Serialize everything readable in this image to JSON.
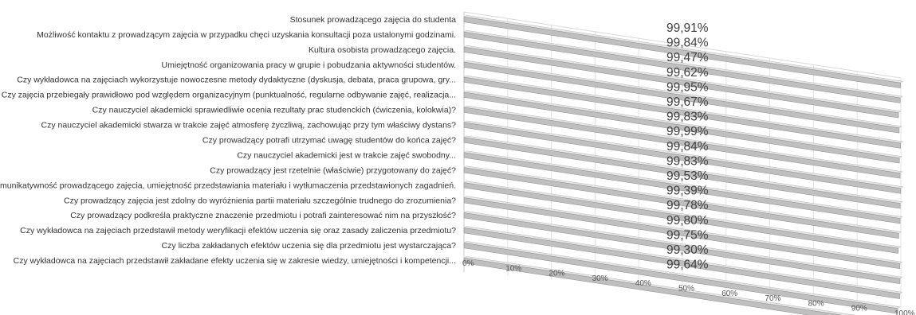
{
  "chart_data": {
    "type": "bar",
    "orientation": "horizontal",
    "style": "3d-perspective",
    "title": "",
    "xlabel": "",
    "ylabel": "",
    "xlim": [
      0,
      1
    ],
    "grid": true,
    "legend": "none",
    "bar_color": "#bfbfbf",
    "categories": [
      "Stosunek prowadzącego zajęcia do studenta",
      "Możliwość kontaktu z prowadzącym zajęcia w przypadku chęci uzyskania konsultacji poza ustalonymi godzinami.",
      "Kultura osobista prowadzącego zajęcia.",
      "Umiejętność organizowania pracy w grupie i pobudzania aktywności studentów.",
      "Czy wykładowca na zajęciach wykorzystuje nowoczesne metody dydaktyczne (dyskusja, debata, praca grupowa, gry...",
      "Czy zajęcia przebiegały prawidłowo pod względem organizacyjnym (punktualność, regularne odbywanie zajęć, realizacja...",
      "Czy nauczyciel akademicki sprawiedliwie ocenia rezultaty prac studenckich (ćwiczenia, kolokwia)?",
      "Czy nauczyciel akademicki stwarza w trakcie zajęć atmosferę życzliwą, zachowując przy tym właściwy dystans?",
      "Czy prowadzący potrafi utrzymać uwagę studentów do końca zajęć?",
      "Czy nauczyciel akademicki jest w trakcie zajęć swobodny...",
      "Czy prowadzący jest rzetelnie (właściwie) przygotowany do zajęć?",
      "Komunikatywność prowadzącego zajęcia, umiejętność przedstawiania materiału i wytłumaczenia przedstawionych zagadnień.",
      "Czy prowadzący zajęcia jest zdolny do wyróżnienia partii materiału szczególnie trudnego do zrozumienia?",
      "Czy prowadzący podkreśla praktyczne znaczenie przedmiotu i potrafi zainteresować nim na przyszłość?",
      "Czy wykładowca na zajęciach przedstawił metody weryfikacji efektów uczenia się oraz zasady zaliczenia przedmiotu?",
      "Czy liczba zakładanych efektów uczenia się dla przedmiotu jest wystarczająca?",
      "Czy wykładowca na zajęciach przedstawił zakładane efekty uczenia się w zakresie wiedzy, umiejętności i kompetencji..."
    ],
    "data_labels": [
      "99,91%",
      "99,84%",
      "99,47%",
      "99,62%",
      "99,95%",
      "99,67%",
      "99,83%",
      "99,99%",
      "99,84%",
      "99,83%",
      "99,53%",
      "99,39%",
      "99,78%",
      "99,80%",
      "99,75%",
      "99,30%",
      "99,64%"
    ],
    "values": [
      0.9991,
      0.9984,
      0.9947,
      0.9962,
      0.9995,
      0.9967,
      0.9983,
      0.9999,
      0.9984,
      0.9983,
      0.9953,
      0.9939,
      0.9978,
      0.998,
      0.9975,
      0.993,
      0.9964
    ],
    "tick_labels": [
      "0%",
      "10%",
      "20%",
      "30%",
      "40%",
      "50%",
      "60%",
      "70%",
      "80%",
      "90%",
      "100%"
    ]
  }
}
